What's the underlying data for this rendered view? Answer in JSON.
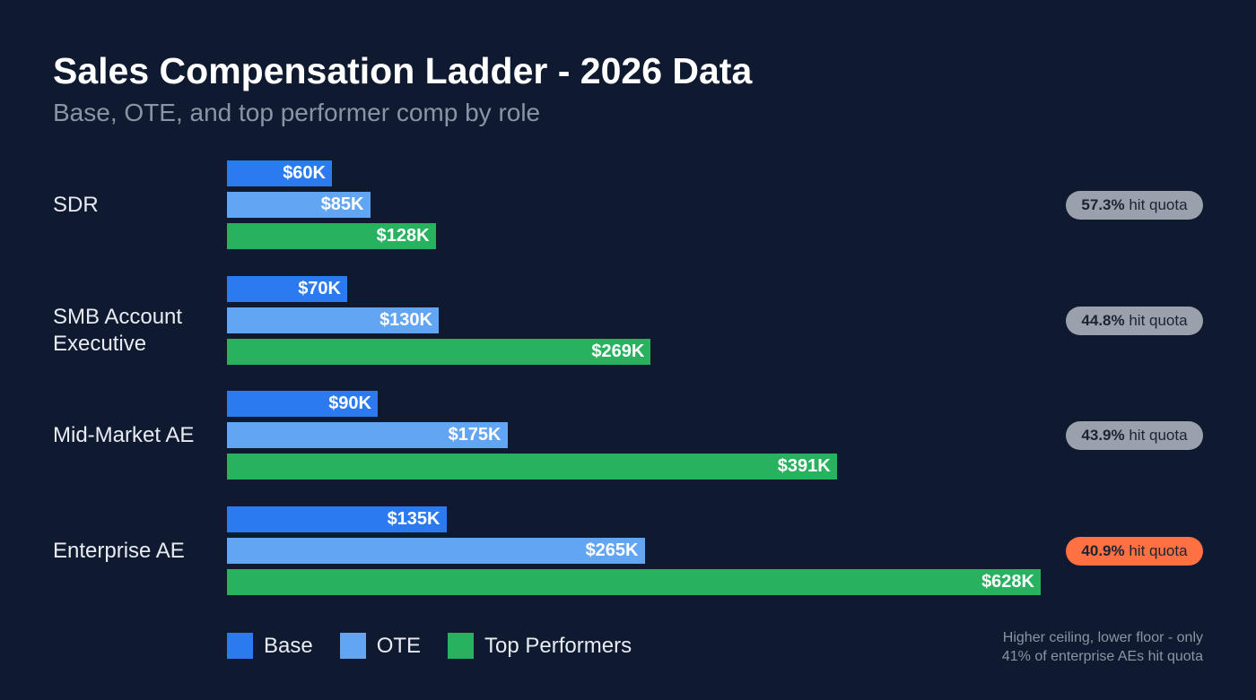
{
  "chart_data": {
    "type": "bar",
    "orientation": "horizontal",
    "title": "Sales Compensation Ladder - 2026 Data",
    "subtitle": "Base, OTE, and top performer comp by role",
    "categories": [
      "SDR",
      "SMB Account Executive",
      "Mid-Market AE",
      "Enterprise AE"
    ],
    "series": [
      {
        "name": "Base",
        "color": "#2b7af0",
        "values": [
          60,
          70,
          90,
          135
        ],
        "labels": [
          "$60K",
          "$70K",
          "$90K",
          "$135K"
        ]
      },
      {
        "name": "OTE",
        "color": "#62a6f3",
        "values": [
          85,
          130,
          175,
          265
        ],
        "labels": [
          "$85K",
          "$130K",
          "$175K",
          "$265K"
        ]
      },
      {
        "name": "Top Performers",
        "color": "#28b15f",
        "values": [
          128,
          269,
          391,
          628
        ],
        "labels": [
          "$128K",
          "$269K",
          "$391K",
          "$628K"
        ]
      }
    ],
    "unit": "$K",
    "quota": [
      {
        "pct": "57.3%",
        "text": "hit quota",
        "color": "#9aa1ad"
      },
      {
        "pct": "44.8%",
        "text": "hit quota",
        "color": "#9aa1ad"
      },
      {
        "pct": "43.9%",
        "text": "hit quota",
        "color": "#9aa1ad"
      },
      {
        "pct": "40.9%",
        "text": "hit quota",
        "color": "#ff7043"
      }
    ],
    "legend_position": "bottom-left",
    "grid": false,
    "note": [
      "Higher ceiling, lower floor - only",
      "41% of enterprise AEs hit quota"
    ]
  }
}
